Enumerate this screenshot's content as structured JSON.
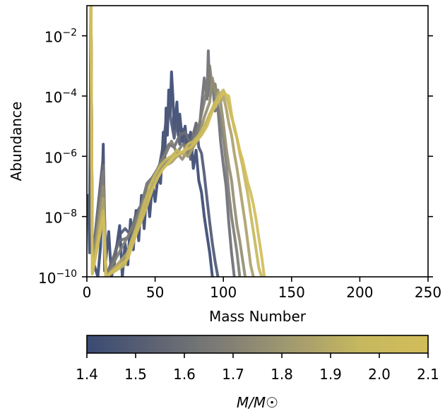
{
  "chart_data": {
    "type": "line",
    "xlabel": "Mass Number",
    "ylabel": "Abundance",
    "xlim": [
      0,
      250
    ],
    "ylim_log10": [
      -10,
      -1
    ],
    "y_scale": "log",
    "x_ticks": [
      "0",
      "50",
      "100",
      "150",
      "200",
      "250"
    ],
    "y_ticks": [
      {
        "exp": -2,
        "base": "10",
        "power": "−2"
      },
      {
        "exp": -4,
        "base": "10",
        "power": "−4"
      },
      {
        "exp": -6,
        "base": "10",
        "power": "−6"
      },
      {
        "exp": -8,
        "base": "10",
        "power": "−8"
      },
      {
        "exp": -10,
        "base": "10",
        "power": "−10"
      }
    ],
    "grid": false,
    "colorbar": {
      "label": "M/M☉",
      "range": [
        1.4,
        2.1
      ],
      "ticks": [
        "1.4",
        "1.5",
        "1.6",
        "1.7",
        "1.8",
        "1.9",
        "2.0",
        "2.1"
      ],
      "colors": [
        "#3b4a73",
        "#5e6373",
        "#7f7d75",
        "#a29a6f",
        "#c6b85f",
        "#d2bd5a"
      ]
    },
    "series": [
      {
        "mass": 1.4,
        "color": "#3b4a73",
        "points": [
          [
            1,
            -7.3
          ],
          [
            2,
            -9.2
          ],
          [
            3,
            -1
          ],
          [
            4,
            -9.4
          ],
          [
            8,
            -10
          ],
          [
            10,
            -9
          ],
          [
            12,
            -5.6
          ],
          [
            13,
            -9.8
          ],
          [
            16,
            -8.5
          ],
          [
            18,
            -10
          ],
          [
            20,
            -9.6
          ],
          [
            24,
            -8.3
          ],
          [
            26,
            -10
          ],
          [
            28,
            -8.9
          ],
          [
            30,
            -9.6
          ],
          [
            32,
            -8.1
          ],
          [
            34,
            -9.1
          ],
          [
            36,
            -7.8
          ],
          [
            38,
            -8.8
          ],
          [
            40,
            -7.3
          ],
          [
            42,
            -8.4
          ],
          [
            44,
            -7.1
          ],
          [
            46,
            -8.0
          ],
          [
            48,
            -6.9
          ],
          [
            50,
            -7.5
          ],
          [
            52,
            -6.7
          ],
          [
            54,
            -6.9
          ],
          [
            56,
            -5.2
          ],
          [
            57,
            -6.3
          ],
          [
            58,
            -4.4
          ],
          [
            59,
            -5.3
          ],
          [
            60,
            -3.8
          ],
          [
            61,
            -4.6
          ],
          [
            62,
            -3.2
          ],
          [
            63,
            -4.0
          ],
          [
            64,
            -5.1
          ],
          [
            66,
            -4.2
          ],
          [
            67,
            -5.3
          ],
          [
            68,
            -4.6
          ],
          [
            70,
            -5.5
          ],
          [
            72,
            -5.0
          ],
          [
            74,
            -6.0
          ],
          [
            76,
            -5.2
          ],
          [
            78,
            -6.4
          ],
          [
            80,
            -5.8
          ],
          [
            82,
            -6.8
          ],
          [
            84,
            -7.2
          ],
          [
            86,
            -8.0
          ],
          [
            88,
            -8.6
          ],
          [
            90,
            -9.2
          ],
          [
            92,
            -10
          ]
        ]
      },
      {
        "mass": 1.5,
        "color": "#4f5875",
        "points": [
          [
            2,
            -7.8
          ],
          [
            3,
            -1
          ],
          [
            4,
            -9.5
          ],
          [
            12,
            -6.0
          ],
          [
            14,
            -10
          ],
          [
            20,
            -9.3
          ],
          [
            24,
            -8.6
          ],
          [
            28,
            -8.4
          ],
          [
            32,
            -8.6
          ],
          [
            36,
            -7.9
          ],
          [
            40,
            -7.6
          ],
          [
            44,
            -7.3
          ],
          [
            48,
            -7.0
          ],
          [
            52,
            -6.6
          ],
          [
            56,
            -5.6
          ],
          [
            58,
            -4.8
          ],
          [
            60,
            -4.3
          ],
          [
            62,
            -4.9
          ],
          [
            64,
            -5.4
          ],
          [
            66,
            -4.8
          ],
          [
            68,
            -5.6
          ],
          [
            70,
            -5.1
          ],
          [
            72,
            -5.8
          ],
          [
            74,
            -5.3
          ],
          [
            76,
            -6.1
          ],
          [
            78,
            -5.6
          ],
          [
            80,
            -4.9
          ],
          [
            82,
            -5.7
          ],
          [
            84,
            -5.9
          ],
          [
            86,
            -6.6
          ],
          [
            88,
            -7.4
          ],
          [
            90,
            -8.2
          ],
          [
            92,
            -8.9
          ],
          [
            94,
            -9.5
          ],
          [
            96,
            -10
          ]
        ]
      },
      {
        "mass": 1.6,
        "color": "#6c6e76",
        "points": [
          [
            3,
            -1
          ],
          [
            4,
            -9.6
          ],
          [
            12,
            -6.3
          ],
          [
            14,
            -10
          ],
          [
            24,
            -8.8
          ],
          [
            30,
            -8.7
          ],
          [
            36,
            -8.0
          ],
          [
            40,
            -7.6
          ],
          [
            44,
            -6.9
          ],
          [
            48,
            -6.7
          ],
          [
            52,
            -6.4
          ],
          [
            56,
            -6.0
          ],
          [
            60,
            -5.6
          ],
          [
            64,
            -5.7
          ],
          [
            68,
            -5.3
          ],
          [
            72,
            -5.2
          ],
          [
            76,
            -5.6
          ],
          [
            80,
            -4.9
          ],
          [
            82,
            -5.3
          ],
          [
            84,
            -4.3
          ],
          [
            86,
            -3.4
          ],
          [
            88,
            -4.1
          ],
          [
            89,
            -2.5
          ],
          [
            90,
            -4.0
          ],
          [
            92,
            -3.5
          ],
          [
            94,
            -4.5
          ],
          [
            96,
            -4.4
          ],
          [
            98,
            -5.5
          ],
          [
            100,
            -6.3
          ],
          [
            102,
            -7.0
          ],
          [
            104,
            -8.2
          ],
          [
            106,
            -9.2
          ],
          [
            108,
            -10
          ]
        ]
      },
      {
        "mass": 1.7,
        "color": "#7e7d75",
        "points": [
          [
            3,
            -1
          ],
          [
            4,
            -9.7
          ],
          [
            12,
            -6.5
          ],
          [
            14,
            -10
          ],
          [
            26,
            -9.0
          ],
          [
            32,
            -8.5
          ],
          [
            38,
            -7.9
          ],
          [
            44,
            -7.0
          ],
          [
            50,
            -6.6
          ],
          [
            54,
            -6.2
          ],
          [
            58,
            -5.9
          ],
          [
            62,
            -5.5
          ],
          [
            66,
            -5.9
          ],
          [
            70,
            -5.6
          ],
          [
            74,
            -5.7
          ],
          [
            78,
            -5.5
          ],
          [
            82,
            -5.0
          ],
          [
            86,
            -4.2
          ],
          [
            88,
            -3.7
          ],
          [
            90,
            -3.0
          ],
          [
            92,
            -3.8
          ],
          [
            94,
            -3.6
          ],
          [
            96,
            -4.3
          ],
          [
            98,
            -4.8
          ],
          [
            100,
            -5.4
          ],
          [
            102,
            -6.2
          ],
          [
            104,
            -7.2
          ],
          [
            106,
            -8.0
          ],
          [
            108,
            -8.6
          ],
          [
            110,
            -9.2
          ],
          [
            112,
            -10
          ]
        ]
      },
      {
        "mass": 1.8,
        "color": "#948e72",
        "points": [
          [
            3,
            -1
          ],
          [
            4,
            -9.8
          ],
          [
            12,
            -7.0
          ],
          [
            14,
            -10
          ],
          [
            28,
            -9.4
          ],
          [
            34,
            -8.6
          ],
          [
            40,
            -7.8
          ],
          [
            46,
            -7.3
          ],
          [
            50,
            -6.8
          ],
          [
            54,
            -6.4
          ],
          [
            58,
            -6.2
          ],
          [
            62,
            -6.0
          ],
          [
            66,
            -5.9
          ],
          [
            70,
            -6.1
          ],
          [
            74,
            -5.8
          ],
          [
            78,
            -5.6
          ],
          [
            82,
            -5.3
          ],
          [
            86,
            -4.7
          ],
          [
            90,
            -4.2
          ],
          [
            92,
            -3.4
          ],
          [
            94,
            -3.9
          ],
          [
            96,
            -3.8
          ],
          [
            98,
            -4.2
          ],
          [
            100,
            -4.9
          ],
          [
            102,
            -5.7
          ],
          [
            104,
            -6.3
          ],
          [
            106,
            -6.8
          ],
          [
            108,
            -7.6
          ],
          [
            110,
            -8.3
          ],
          [
            112,
            -8.8
          ],
          [
            114,
            -9.4
          ],
          [
            116,
            -10
          ]
        ]
      },
      {
        "mass": 1.9,
        "color": "#aca26c",
        "points": [
          [
            3,
            -1
          ],
          [
            4,
            -9.8
          ],
          [
            12,
            -7.4
          ],
          [
            14,
            -10
          ],
          [
            30,
            -9.2
          ],
          [
            36,
            -8.4
          ],
          [
            42,
            -7.5
          ],
          [
            46,
            -7.2
          ],
          [
            50,
            -6.8
          ],
          [
            54,
            -6.5
          ],
          [
            58,
            -6.3
          ],
          [
            62,
            -6.2
          ],
          [
            66,
            -6.0
          ],
          [
            70,
            -5.9
          ],
          [
            74,
            -6.0
          ],
          [
            78,
            -5.7
          ],
          [
            82,
            -5.4
          ],
          [
            86,
            -5.1
          ],
          [
            90,
            -4.6
          ],
          [
            94,
            -4.3
          ],
          [
            96,
            -3.9
          ],
          [
            98,
            -4.2
          ],
          [
            100,
            -4.0
          ],
          [
            102,
            -4.4
          ],
          [
            104,
            -4.9
          ],
          [
            106,
            -5.3
          ],
          [
            108,
            -5.9
          ],
          [
            110,
            -6.4
          ],
          [
            112,
            -7.0
          ],
          [
            114,
            -7.6
          ],
          [
            116,
            -8.2
          ],
          [
            118,
            -8.9
          ],
          [
            120,
            -9.6
          ],
          [
            122,
            -10
          ]
        ]
      },
      {
        "mass": 2.0,
        "color": "#c6b85f",
        "points": [
          [
            3,
            -1
          ],
          [
            4,
            -9.9
          ],
          [
            12,
            -7.8
          ],
          [
            14,
            -10
          ],
          [
            28,
            -9.6
          ],
          [
            32,
            -8.9
          ],
          [
            38,
            -8.2
          ],
          [
            42,
            -7.6
          ],
          [
            46,
            -7.0
          ],
          [
            50,
            -6.6
          ],
          [
            54,
            -6.3
          ],
          [
            58,
            -6.1
          ],
          [
            62,
            -6.0
          ],
          [
            66,
            -5.8
          ],
          [
            70,
            -5.9
          ],
          [
            74,
            -5.6
          ],
          [
            78,
            -5.5
          ],
          [
            82,
            -5.3
          ],
          [
            86,
            -5.0
          ],
          [
            90,
            -4.6
          ],
          [
            94,
            -4.2
          ],
          [
            98,
            -3.9
          ],
          [
            100,
            -3.8
          ],
          [
            102,
            -4.0
          ],
          [
            104,
            -4.3
          ],
          [
            106,
            -4.7
          ],
          [
            108,
            -5.0
          ],
          [
            110,
            -5.4
          ],
          [
            112,
            -5.9
          ],
          [
            114,
            -6.3
          ],
          [
            116,
            -6.8
          ],
          [
            118,
            -7.3
          ],
          [
            120,
            -7.9
          ],
          [
            122,
            -8.5
          ],
          [
            124,
            -9.1
          ],
          [
            126,
            -9.7
          ],
          [
            128,
            -10
          ]
        ]
      },
      {
        "mass": 2.1,
        "color": "#d2bd5a",
        "points": [
          [
            3,
            -1
          ],
          [
            4,
            -9.9
          ],
          [
            12,
            -8.0
          ],
          [
            14,
            -10
          ],
          [
            30,
            -9.4
          ],
          [
            36,
            -8.6
          ],
          [
            42,
            -7.9
          ],
          [
            48,
            -7.1
          ],
          [
            52,
            -6.7
          ],
          [
            56,
            -6.4
          ],
          [
            60,
            -6.2
          ],
          [
            64,
            -6.0
          ],
          [
            68,
            -5.9
          ],
          [
            72,
            -5.8
          ],
          [
            76,
            -5.7
          ],
          [
            80,
            -5.5
          ],
          [
            84,
            -5.3
          ],
          [
            88,
            -5.0
          ],
          [
            92,
            -4.5
          ],
          [
            96,
            -4.2
          ],
          [
            100,
            -3.9
          ],
          [
            104,
            -4.0
          ],
          [
            106,
            -4.6
          ],
          [
            108,
            -5.1
          ],
          [
            110,
            -5.4
          ],
          [
            112,
            -5.8
          ],
          [
            114,
            -6.1
          ],
          [
            116,
            -6.5
          ],
          [
            118,
            -6.9
          ],
          [
            120,
            -7.2
          ],
          [
            122,
            -7.6
          ],
          [
            124,
            -8.1
          ],
          [
            126,
            -8.7
          ],
          [
            128,
            -9.3
          ],
          [
            130,
            -10
          ]
        ]
      }
    ]
  }
}
